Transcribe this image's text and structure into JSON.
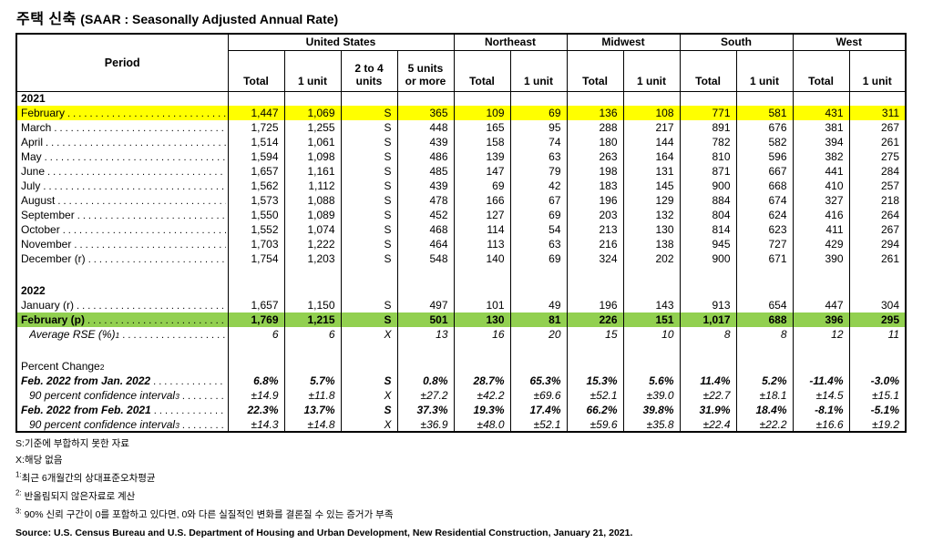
{
  "title": {
    "korean": "주택 신축",
    "english": "(SAAR : Seasonally Adjusted Annual Rate)"
  },
  "colors": {
    "highlight_yellow": "#FFFF00",
    "highlight_green": "#92D050",
    "border": "#000000"
  },
  "table": {
    "period_header": "Period",
    "groups": [
      {
        "label": "United States",
        "columns": [
          [
            "Total"
          ],
          [
            "1 unit"
          ],
          [
            "2 to 4",
            "units"
          ],
          [
            "5 units",
            "or more"
          ]
        ]
      },
      {
        "label": "Northeast",
        "columns": [
          [
            "Total"
          ],
          [
            "1 unit"
          ]
        ]
      },
      {
        "label": "Midwest",
        "columns": [
          [
            "Total"
          ],
          [
            "1 unit"
          ]
        ]
      },
      {
        "label": "South",
        "columns": [
          [
            "Total"
          ],
          [
            "1 unit"
          ]
        ]
      },
      {
        "label": "West",
        "columns": [
          [
            "Total"
          ],
          [
            "1 unit"
          ]
        ]
      }
    ],
    "rows": [
      {
        "type": "year",
        "label": "2021",
        "cells": []
      },
      {
        "type": "data",
        "label": "February",
        "highlight": "yellow",
        "cells": [
          "1,447",
          "1,069",
          "S",
          "365",
          "109",
          "69",
          "136",
          "108",
          "771",
          "581",
          "431",
          "311"
        ]
      },
      {
        "type": "data",
        "label": "March",
        "cells": [
          "1,725",
          "1,255",
          "S",
          "448",
          "165",
          "95",
          "288",
          "217",
          "891",
          "676",
          "381",
          "267"
        ]
      },
      {
        "type": "data",
        "label": "April",
        "cells": [
          "1,514",
          "1,061",
          "S",
          "439",
          "158",
          "74",
          "180",
          "144",
          "782",
          "582",
          "394",
          "261"
        ]
      },
      {
        "type": "data",
        "label": "May",
        "cells": [
          "1,594",
          "1,098",
          "S",
          "486",
          "139",
          "63",
          "263",
          "164",
          "810",
          "596",
          "382",
          "275"
        ]
      },
      {
        "type": "data",
        "label": "June",
        "cells": [
          "1,657",
          "1,161",
          "S",
          "485",
          "147",
          "79",
          "198",
          "131",
          "871",
          "667",
          "441",
          "284"
        ]
      },
      {
        "type": "data",
        "label": "July",
        "cells": [
          "1,562",
          "1,112",
          "S",
          "439",
          "69",
          "42",
          "183",
          "145",
          "900",
          "668",
          "410",
          "257"
        ]
      },
      {
        "type": "data",
        "label": "August",
        "cells": [
          "1,573",
          "1,088",
          "S",
          "478",
          "166",
          "67",
          "196",
          "129",
          "884",
          "674",
          "327",
          "218"
        ]
      },
      {
        "type": "data",
        "label": "September",
        "cells": [
          "1,550",
          "1,089",
          "S",
          "452",
          "127",
          "69",
          "203",
          "132",
          "804",
          "624",
          "416",
          "264"
        ]
      },
      {
        "type": "data",
        "label": "October",
        "cells": [
          "1,552",
          "1,074",
          "S",
          "468",
          "114",
          "54",
          "213",
          "130",
          "814",
          "623",
          "411",
          "267"
        ]
      },
      {
        "type": "data",
        "label": "November",
        "cells": [
          "1,703",
          "1,222",
          "S",
          "464",
          "113",
          "63",
          "216",
          "138",
          "945",
          "727",
          "429",
          "294"
        ]
      },
      {
        "type": "data",
        "label": "December (r)",
        "cells": [
          "1,754",
          "1,203",
          "S",
          "548",
          "140",
          "69",
          "324",
          "202",
          "900",
          "671",
          "390",
          "261"
        ]
      },
      {
        "type": "empty",
        "label": "",
        "cells": []
      },
      {
        "type": "year",
        "label": "2022",
        "cells": []
      },
      {
        "type": "data",
        "label": "January (r)",
        "cells": [
          "1,657",
          "1,150",
          "S",
          "497",
          "101",
          "49",
          "196",
          "143",
          "913",
          "654",
          "447",
          "304"
        ]
      },
      {
        "type": "data-bold",
        "label": "February (p)",
        "highlight": "green",
        "cells": [
          "1,769",
          "1,215",
          "S",
          "501",
          "130",
          "81",
          "226",
          "151",
          "1,017",
          "688",
          "396",
          "295"
        ]
      },
      {
        "type": "rse",
        "label": "Average RSE (%)",
        "sup": "1",
        "indent": true,
        "cells": [
          "6",
          "6",
          "X",
          "13",
          "16",
          "20",
          "15",
          "10",
          "8",
          "8",
          "12",
          "11"
        ]
      },
      {
        "type": "empty",
        "label": "",
        "cells": []
      },
      {
        "type": "section",
        "label": "Percent Change",
        "sup": "2",
        "cells": []
      },
      {
        "type": "change",
        "label": "Feb. 2022 from Jan. 2022",
        "cells": [
          "6.8%",
          "5.7%",
          "S",
          "0.8%",
          "28.7%",
          "65.3%",
          "15.3%",
          "5.6%",
          "11.4%",
          "5.2%",
          "-11.4%",
          "-3.0%"
        ]
      },
      {
        "type": "ci",
        "label": "90 percent confidence interval",
        "sup": "3",
        "indent": true,
        "cells": [
          "±14.9",
          "±11.8",
          "X",
          "±27.2",
          "±42.2",
          "±69.6",
          "±52.1",
          "±39.0",
          "±22.7",
          "±18.1",
          "±14.5",
          "±15.1"
        ]
      },
      {
        "type": "change",
        "label": "Feb. 2022 from Feb. 2021",
        "cells": [
          "22.3%",
          "13.7%",
          "S",
          "37.3%",
          "19.3%",
          "17.4%",
          "66.2%",
          "39.8%",
          "31.9%",
          "18.4%",
          "-8.1%",
          "-5.1%"
        ]
      },
      {
        "type": "ci",
        "label": "90 percent confidence interval",
        "sup": "3",
        "indent": true,
        "cells": [
          "±14.3",
          "±14.8",
          "X",
          "±36.9",
          "±48.0",
          "±52.1",
          "±59.6",
          "±35.8",
          "±22.4",
          "±22.2",
          "±16.6",
          "±19.2"
        ]
      }
    ]
  },
  "footnotes": [
    {
      "marker": "S:",
      "superscript": false,
      "text": "기준에 부합하지 못한 자료"
    },
    {
      "marker": "X:",
      "superscript": false,
      "text": "해당 없음"
    },
    {
      "marker": "1:",
      "superscript": true,
      "text": "최근 6개월간의 상대표준오차평균"
    },
    {
      "marker": "2:",
      "superscript": true,
      "text": " 반올림되지 않은자료로 계산"
    },
    {
      "marker": "3:",
      "superscript": true,
      "text": " 90% 신뢰 구간이 0를 포함하고 있다면, 0와 다른 실질적인 변화를 결론질 수 있는 증거가 부족"
    }
  ],
  "source": "Source: U.S. Census Bureau and U.S. Department of Housing and Urban Development, New Residential Construction, January 21, 2021."
}
